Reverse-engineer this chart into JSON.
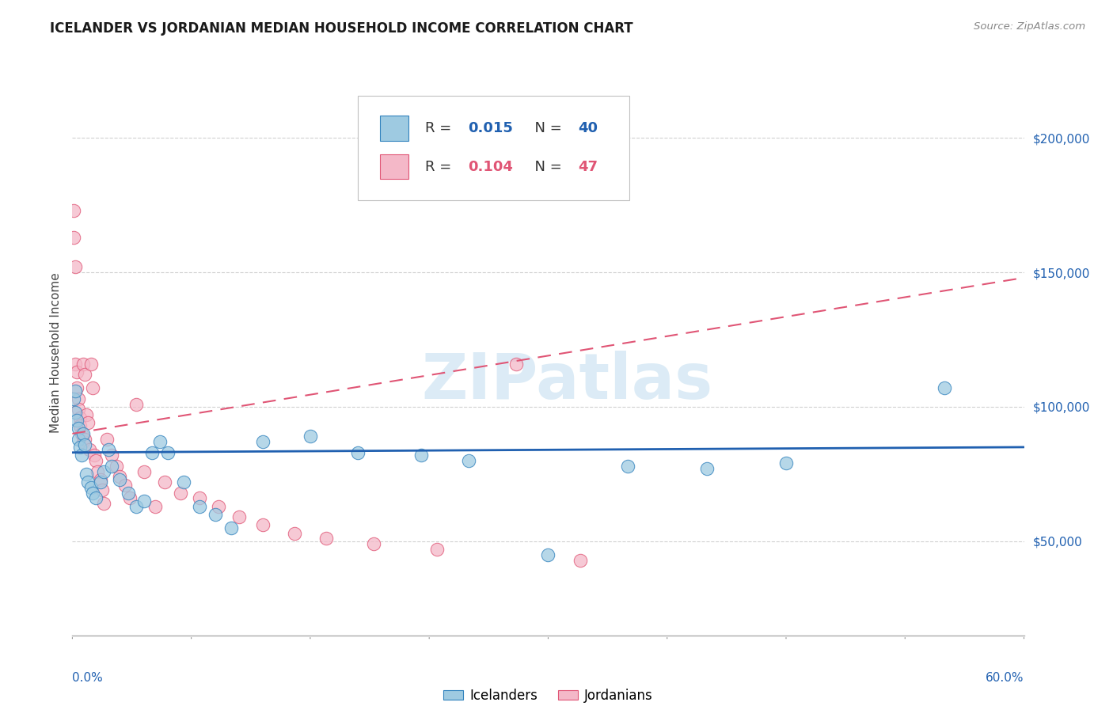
{
  "title": "ICELANDER VS JORDANIAN MEDIAN HOUSEHOLD INCOME CORRELATION CHART",
  "source": "Source: ZipAtlas.com",
  "ylabel": "Median Household Income",
  "watermark": "ZIPatlas",
  "legend_blue_R": "0.015",
  "legend_blue_N": "40",
  "legend_pink_R": "0.104",
  "legend_pink_N": "47",
  "ytick_labels": [
    "$50,000",
    "$100,000",
    "$150,000",
    "$200,000"
  ],
  "ytick_values": [
    50000,
    100000,
    150000,
    200000
  ],
  "ymin": 15000,
  "ymax": 225000,
  "xmin": 0.0,
  "xmax": 0.6,
  "blue_fill": "#9ecae1",
  "pink_fill": "#f4b8c8",
  "blue_edge": "#3182bd",
  "pink_edge": "#e05575",
  "blue_line": "#2060b0",
  "pink_line": "#e05575",
  "grid_color": "#d0d0d0",
  "bg_color": "#ffffff",
  "icelander_label": "Icelanders",
  "jordanian_label": "Jordanians",
  "blue_x": [
    0.001,
    0.002,
    0.002,
    0.003,
    0.004,
    0.004,
    0.005,
    0.006,
    0.007,
    0.008,
    0.009,
    0.01,
    0.012,
    0.013,
    0.015,
    0.018,
    0.02,
    0.023,
    0.025,
    0.03,
    0.035,
    0.04,
    0.045,
    0.05,
    0.055,
    0.06,
    0.07,
    0.08,
    0.09,
    0.1,
    0.12,
    0.15,
    0.18,
    0.22,
    0.25,
    0.3,
    0.35,
    0.4,
    0.45,
    0.55
  ],
  "blue_y": [
    103000,
    106000,
    98000,
    95000,
    92000,
    88000,
    85000,
    82000,
    90000,
    86000,
    75000,
    72000,
    70000,
    68000,
    66000,
    72000,
    76000,
    84000,
    78000,
    73000,
    68000,
    63000,
    65000,
    83000,
    87000,
    83000,
    72000,
    63000,
    60000,
    55000,
    87000,
    89000,
    83000,
    82000,
    80000,
    45000,
    78000,
    77000,
    79000,
    107000
  ],
  "pink_x": [
    0.001,
    0.001,
    0.002,
    0.002,
    0.003,
    0.003,
    0.004,
    0.004,
    0.005,
    0.005,
    0.006,
    0.007,
    0.007,
    0.008,
    0.008,
    0.009,
    0.01,
    0.011,
    0.012,
    0.013,
    0.014,
    0.015,
    0.016,
    0.018,
    0.019,
    0.02,
    0.022,
    0.025,
    0.028,
    0.03,
    0.033,
    0.036,
    0.04,
    0.045,
    0.052,
    0.058,
    0.068,
    0.08,
    0.092,
    0.105,
    0.12,
    0.14,
    0.16,
    0.19,
    0.23,
    0.28,
    0.32
  ],
  "pink_y": [
    173000,
    163000,
    152000,
    116000,
    113000,
    107000,
    103000,
    99000,
    96000,
    93000,
    90000,
    116000,
    87000,
    112000,
    88000,
    97000,
    94000,
    84000,
    116000,
    107000,
    82000,
    80000,
    76000,
    73000,
    69000,
    64000,
    88000,
    82000,
    78000,
    74000,
    71000,
    66000,
    101000,
    76000,
    63000,
    72000,
    68000,
    66000,
    63000,
    59000,
    56000,
    53000,
    51000,
    49000,
    47000,
    116000,
    43000
  ]
}
